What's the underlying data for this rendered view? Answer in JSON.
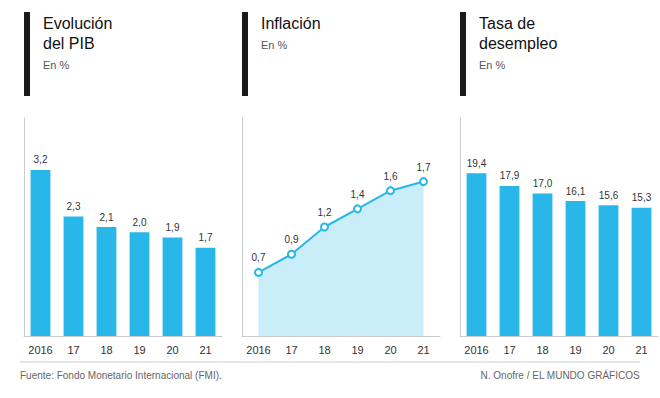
{
  "chart_data": [
    {
      "type": "bar",
      "title": "Evolución\ndel PIB",
      "subtitle": "En %",
      "categories": [
        "2016",
        "17",
        "18",
        "19",
        "20",
        "21"
      ],
      "values": [
        3.2,
        2.3,
        2.1,
        2.0,
        1.9,
        1.7
      ],
      "value_labels": [
        "3,2",
        "2,3",
        "2,1",
        "2,0",
        "1,9",
        "1,7"
      ],
      "color": "#29b6e8",
      "ylim": [
        0,
        4.2
      ],
      "grid": false,
      "data_labels": true,
      "tick_labels": "x"
    },
    {
      "type": "line",
      "title": "Inflación",
      "subtitle": "En %",
      "categories": [
        "2016",
        "17",
        "18",
        "19",
        "20",
        "21"
      ],
      "values": [
        0.7,
        0.9,
        1.2,
        1.4,
        1.6,
        1.7
      ],
      "value_labels": [
        "0,7",
        "0,9",
        "1,2",
        "1,4",
        "1,6",
        "1,7"
      ],
      "color": "#29b6e8",
      "marker": "circle",
      "ylim": [
        0,
        2.4
      ],
      "grid": false,
      "data_labels": true,
      "tick_labels": "x"
    },
    {
      "type": "bar",
      "title": "Tasa de\ndesempleo",
      "subtitle": "En %",
      "categories": [
        "2016",
        "17",
        "18",
        "19",
        "20",
        "21"
      ],
      "values": [
        19.4,
        17.9,
        17.0,
        16.1,
        15.6,
        15.3
      ],
      "value_labels": [
        "19,4",
        "17,9",
        "17,0",
        "16,1",
        "15,6",
        "15,3"
      ],
      "color": "#29b6e8",
      "ylim": [
        0,
        26
      ],
      "grid": false,
      "data_labels": true,
      "tick_labels": "x"
    }
  ],
  "annotations": [
    "Fuente: Fondo Monetario Internacional (FMI).",
    "N. Onofre / EL MUNDO GRÁFICOS"
  ]
}
